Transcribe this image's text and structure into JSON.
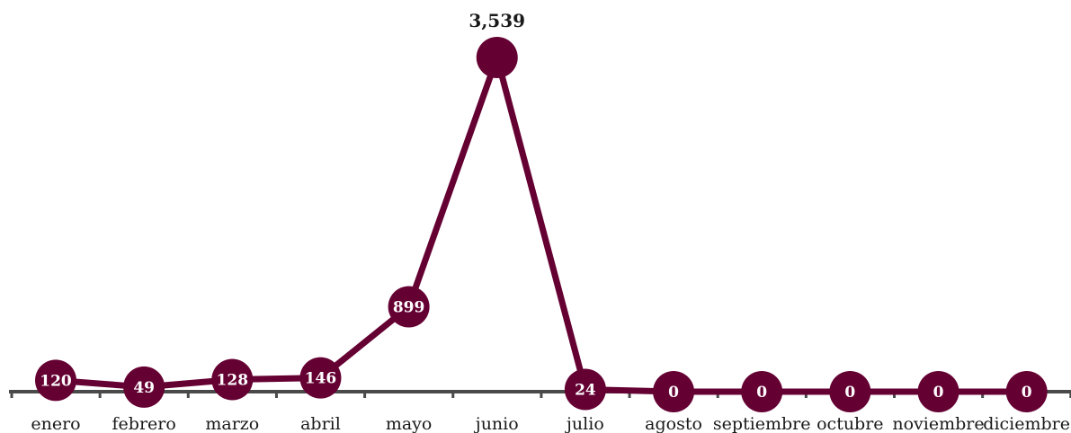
{
  "colors": {
    "series": "#650033",
    "axis": "#4a4a4a",
    "inner_text": "#ffffff",
    "outer_text": "#1a1a1a"
  },
  "chart_data": {
    "type": "line",
    "categories": [
      "enero",
      "febrero",
      "marzo",
      "abril",
      "mayo",
      "junio",
      "julio",
      "agosto",
      "septiembre",
      "octubre",
      "noviembre",
      "diciembre"
    ],
    "values": [
      120,
      49,
      128,
      146,
      899,
      3539,
      24,
      0,
      0,
      0,
      0,
      0
    ],
    "value_labels": [
      "120",
      "49",
      "128",
      "146",
      "899",
      "3,539",
      "24",
      "0",
      "0",
      "0",
      "0",
      "0"
    ],
    "ylim": [
      0,
      3539
    ],
    "grid": false,
    "legend": "none",
    "markers": "circle-with-label"
  }
}
